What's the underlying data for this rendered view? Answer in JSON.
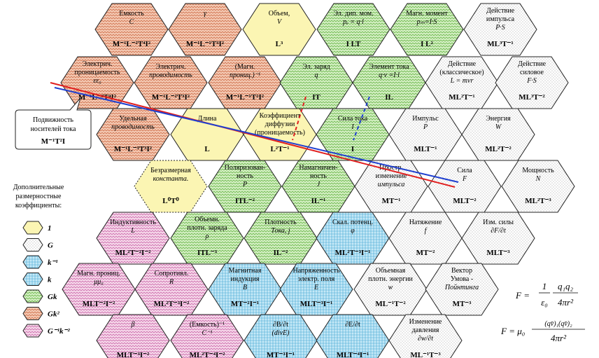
{
  "cells": [
    {
      "id": "emkost",
      "fill": "Gk2",
      "lines": [
        "Емкость",
        "C"
      ],
      "dim": "M⁻¹L⁻²T⁴I²"
    },
    {
      "id": "gamma",
      "fill": "Gk2",
      "lines": [
        "γ"
      ],
      "dim": "M⁻¹L⁻¹T³I²"
    },
    {
      "id": "obem",
      "fill": "1",
      "lines": [
        "Объем,",
        "V"
      ],
      "dim": "L³"
    },
    {
      "id": "el-dip",
      "fill": "Gk",
      "lines": [
        "Эл. дип. мом.",
        "pₑ = q·l"
      ],
      "dim": "I LT"
    },
    {
      "id": "magn-moment",
      "fill": "Gk",
      "lines": [
        "Магн. момент",
        "pₘ=I·S"
      ],
      "dim": "I L²"
    },
    {
      "id": "deistvie-impulsa",
      "fill": "G",
      "lines": [
        "Действие",
        "импульса",
        "P·S"
      ],
      "dim": "ML³T⁻¹"
    },
    {
      "id": "el-pronic",
      "fill": "Gk2",
      "lines": [
        "Электрич.",
        "проницаемость",
        "εε₀"
      ],
      "dim": "M⁻¹L⁻³T⁴I²"
    },
    {
      "id": "el-provod",
      "fill": "Gk2",
      "lines": [
        "Электрич.",
        "проводимость"
      ],
      "dim": "M⁻¹L⁻²T³I²"
    },
    {
      "id": "magn-pronic-inv",
      "fill": "Gk2",
      "lines": [
        "(Магн.",
        "прониц.)⁻¹"
      ],
      "dim": "M⁻¹L⁻¹T²I²"
    },
    {
      "id": "el-zaryad",
      "fill": "Gk",
      "lines": [
        "Эл. заряд",
        "q"
      ],
      "dim": "IT"
    },
    {
      "id": "element-toka",
      "fill": "Gk",
      "lines": [
        "Элемент тока",
        "q·v =I·l"
      ],
      "dim": "IL"
    },
    {
      "id": "deistvie-klass",
      "fill": "G",
      "lines": [
        "Действие",
        "(классическое)",
        "L = mvr"
      ],
      "dim": "ML²T⁻¹"
    },
    {
      "id": "deistvie-silovoe",
      "fill": "G",
      "lines": [
        "Действие",
        "силовое",
        "F·S"
      ],
      "dim": "ML³T⁻²"
    },
    {
      "id": "ud-provod",
      "fill": "Gk2",
      "lines": [
        "Удельная",
        "проводимость"
      ],
      "dim": "M⁻¹L⁻³T³I²"
    },
    {
      "id": "dlina",
      "fill": "1",
      "lines": [
        "Длина"
      ],
      "dim": "L"
    },
    {
      "id": "koef-diff",
      "fill": "1",
      "lines": [
        "Коэффициент",
        "диффузии",
        "(проницаемость)"
      ],
      "dim": "L²T⁻¹"
    },
    {
      "id": "sila-toka",
      "fill": "Gk",
      "lines": [
        "Сила тока",
        "I"
      ],
      "dim": "I"
    },
    {
      "id": "impuls",
      "fill": "G",
      "lines": [
        "Импульс",
        "P"
      ],
      "dim": "MLT⁻¹"
    },
    {
      "id": "energiya",
      "fill": "G",
      "lines": [
        "Энергия",
        "W"
      ],
      "dim": "ML²T⁻²"
    },
    {
      "id": "bezr-const",
      "fill": "1",
      "lines": [
        "Безразмерная",
        "константа."
      ],
      "dim": "L⁰T⁰"
    },
    {
      "id": "polyariz",
      "fill": "Gk",
      "lines": [
        "Поляризован-",
        "ность",
        "P"
      ],
      "dim": "ITL⁻²"
    },
    {
      "id": "namagnich",
      "fill": "Gk",
      "lines": [
        "Намагничен-",
        "ность",
        "J"
      ],
      "dim": "IL⁻¹"
    },
    {
      "id": "prostr-izm",
      "fill": "G",
      "lines": [
        "Простр.",
        "изменение",
        "импульса"
      ],
      "dim": "MT⁻¹"
    },
    {
      "id": "sila",
      "fill": "G",
      "lines": [
        "Сила",
        "F"
      ],
      "dim": "MLT⁻²"
    },
    {
      "id": "moshnost",
      "fill": "G",
      "lines": [
        "Мощность",
        "N"
      ],
      "dim": "ML²T⁻³"
    },
    {
      "id": "indukt",
      "fill": "Ginvk2",
      "lines": [
        "Индуктивность",
        "L"
      ],
      "dim": "ML²T⁻²I⁻²"
    },
    {
      "id": "obem-plotn-zar",
      "fill": "Gk",
      "lines": [
        "Объемн.",
        "плотн. заряда",
        "ρ"
      ],
      "dim": "ITL⁻³"
    },
    {
      "id": "plotn-toka",
      "fill": "Gk",
      "lines": [
        "Плотность",
        "Тока, j"
      ],
      "dim": "IL⁻²"
    },
    {
      "id": "skal-potenc",
      "fill": "kinv",
      "lines": [
        "Скал. потенц.",
        "φ"
      ],
      "dim": "ML²T⁻³I⁻¹"
    },
    {
      "id": "natyazhenie",
      "fill": "G",
      "lines": [
        "Натяжение",
        "f"
      ],
      "dim": "MT⁻²"
    },
    {
      "id": "izm-sily",
      "fill": "G",
      "lines": [
        "Изм. силы",
        "∂F/∂t"
      ],
      "dim": "MLT⁻³"
    },
    {
      "id": "magn-pronic",
      "fill": "Ginvk2",
      "lines": [
        "Магн. прониц.",
        "μμ₀"
      ],
      "dim": "MLT⁻²I⁻²"
    },
    {
      "id": "soprotivl",
      "fill": "Ginvk2",
      "lines": [
        "Сопротивл.",
        "R"
      ],
      "dim": "ML²T⁻³I⁻²"
    },
    {
      "id": "magn-indukc",
      "fill": "kinv",
      "lines": [
        "Магнитная",
        "индукция",
        "B"
      ],
      "dim": "MT⁻²I⁻¹"
    },
    {
      "id": "napryazh",
      "fill": "kinv",
      "lines": [
        "Напряженность",
        "электр. поля",
        "E"
      ],
      "dim": "MLT⁻³I⁻¹"
    },
    {
      "id": "obem-plotn-energ",
      "fill": "G",
      "lines": [
        "Объемная",
        "плотн. энергии",
        "w"
      ],
      "dim": "ML⁻¹T⁻²"
    },
    {
      "id": "vektor-umova",
      "fill": "G",
      "lines": [
        "Вектор",
        "Умова -",
        "Пойнтинга"
      ],
      "dim": "MT⁻³"
    },
    {
      "id": "beta",
      "fill": "Ginvk2",
      "lines": [
        "β"
      ],
      "dim": "MLT⁻³I⁻²"
    },
    {
      "id": "emkost-inv",
      "fill": "Ginvk2",
      "lines": [
        "(Емкость)⁻¹",
        "C⁻¹"
      ],
      "dim": "ML²T⁻⁴I⁻²"
    },
    {
      "id": "dB-dt",
      "fill": "kinv",
      "lines": [
        "∂B/∂t",
        "(divE)"
      ],
      "dim": "MT⁻³I⁻¹"
    },
    {
      "id": "dE-dt",
      "fill": "kinv",
      "lines": [
        "∂E/∂t"
      ],
      "dim": "MLT⁻⁴I⁻¹"
    },
    {
      "id": "izm-davleniya",
      "fill": "G",
      "lines": [
        "Изменение",
        "давления",
        "∂w/∂t"
      ],
      "dim": "ML⁻¹T⁻³"
    }
  ],
  "callout": {
    "lines": [
      "Подвижность",
      "носителей тока"
    ],
    "dim": "M⁻¹T²I"
  },
  "legend": {
    "title_lines": [
      "Дополнительные",
      "размерностные",
      "коэффициенты:"
    ],
    "items": [
      {
        "key": "1",
        "fill": "1",
        "label": "1"
      },
      {
        "key": "G",
        "fill": "G",
        "label": "G"
      },
      {
        "key": "kinv",
        "fill": "kinv",
        "label": "k⁻¹"
      },
      {
        "key": "k",
        "fill": "k",
        "label": "k"
      },
      {
        "key": "Gk",
        "fill": "Gk",
        "label": "Gk"
      },
      {
        "key": "Gk2",
        "fill": "Gk2",
        "label": "Gk²"
      },
      {
        "key": "Ginvk2",
        "fill": "Ginvk2",
        "label": "G⁻¹k⁻²"
      }
    ]
  },
  "formulas": {
    "coulomb": {
      "lhs": "F =",
      "num1": "1",
      "den1": "ε₀",
      "num2": "q₁q₂",
      "den2": "4πr²"
    },
    "ampere": {
      "lhs": "F = μ₀",
      "num": "(qv̄)₁(qv̄)₂",
      "den": "4πr²"
    }
  },
  "colors": {
    "1": "#fbf5b3",
    "G": "#ffffff",
    "kinv": "#bfe6f5",
    "k": "#bfe6f5",
    "Gk": "#d3efc2",
    "Gk2": "#f4c9b3",
    "Ginvk2": "#f6d7ea",
    "red_line": "#e01f1f",
    "blue_line": "#1f3fcf"
  }
}
